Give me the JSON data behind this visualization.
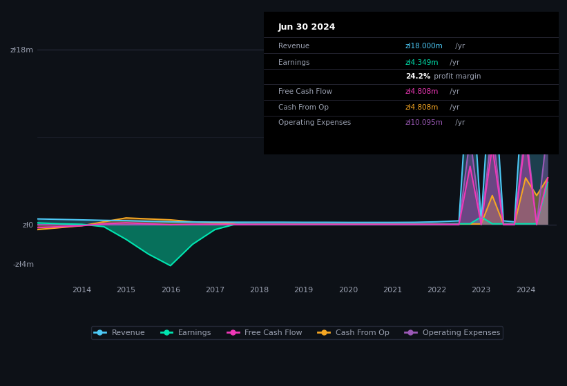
{
  "bg_color": "#0d1117",
  "plot_bg_color": "#0d1117",
  "grid_color": "#2a3040",
  "text_color": "#9aa0b0",
  "title_text_color": "#ffffff",
  "ylim": [
    -6000000,
    22000000
  ],
  "yticks": [
    -4000000,
    0,
    18000000
  ],
  "ytick_labels": [
    "-zł4m",
    "zł0",
    "zł18m"
  ],
  "xticks": [
    2014,
    2015,
    2016,
    2017,
    2018,
    2019,
    2020,
    2021,
    2022,
    2023,
    2024
  ],
  "years": [
    2013.0,
    2013.5,
    2014.0,
    2014.5,
    2015.0,
    2015.5,
    2016.0,
    2016.5,
    2017.0,
    2017.5,
    2018.0,
    2018.5,
    2019.0,
    2019.5,
    2020.0,
    2020.5,
    2021.0,
    2021.5,
    2022.0,
    2022.5,
    2022.75,
    2023.0,
    2023.25,
    2023.5,
    2023.75,
    2024.0,
    2024.25,
    2024.5
  ],
  "revenue": [
    600000,
    550000,
    500000,
    450000,
    420000,
    350000,
    300000,
    280000,
    270000,
    260000,
    260000,
    260000,
    250000,
    250000,
    240000,
    240000,
    240000,
    250000,
    300000,
    400000,
    18000000,
    300000,
    18000000,
    400000,
    300000,
    18000000,
    17000000,
    18000000
  ],
  "earnings": [
    200000,
    100000,
    50000,
    -200000,
    -1500000,
    -3000000,
    -4200000,
    -2000000,
    -500000,
    100000,
    50000,
    50000,
    50000,
    50000,
    50000,
    50000,
    50000,
    50000,
    50000,
    100000,
    100000,
    800000,
    100000,
    100000,
    100000,
    100000,
    100000,
    4349000
  ],
  "free_cash_flow": [
    -300000,
    -200000,
    -100000,
    100000,
    200000,
    100000,
    0,
    50000,
    50000,
    50000,
    50000,
    50000,
    50000,
    50000,
    50000,
    50000,
    50000,
    50000,
    50000,
    50000,
    6000000,
    50000,
    8000000,
    50000,
    50000,
    9000000,
    50000,
    4808000
  ],
  "cash_from_op": [
    -500000,
    -300000,
    -100000,
    300000,
    700000,
    600000,
    500000,
    300000,
    200000,
    100000,
    80000,
    80000,
    80000,
    80000,
    80000,
    80000,
    80000,
    80000,
    80000,
    80000,
    80000,
    80000,
    3000000,
    80000,
    80000,
    4808000,
    3000000,
    4808000
  ],
  "op_expenses": [
    0,
    0,
    0,
    0,
    0,
    0,
    0,
    0,
    0,
    0,
    0,
    0,
    0,
    0,
    0,
    0,
    0,
    0,
    0,
    0,
    9000000,
    0,
    10000000,
    0,
    0,
    10095000,
    0,
    10095000
  ],
  "revenue_color": "#4dc9f6",
  "earnings_color": "#00e5b0",
  "fcf_color": "#f038b8",
  "cashop_color": "#f5a623",
  "opex_color": "#9b59b6",
  "revenue_fill": "#1a4a6e",
  "earnings_fill": "#4a0020",
  "fcf_fill": "#6e1a4a",
  "cashop_fill": "#6e4a1a",
  "opex_fill": "#4a1a6e",
  "legend_labels": [
    "Revenue",
    "Earnings",
    "Free Cash Flow",
    "Cash From Op",
    "Operating Expenses"
  ],
  "info_date": "Jun 30 2024",
  "info_revenue": "zł18.000m /yr",
  "info_earnings": "zł4.349m /yr",
  "info_margin": "24.2% profit margin",
  "info_fcf": "zł4.808m /yr",
  "info_cashop": "zł4.808m /yr",
  "info_opex": "zł10.095m /yr"
}
